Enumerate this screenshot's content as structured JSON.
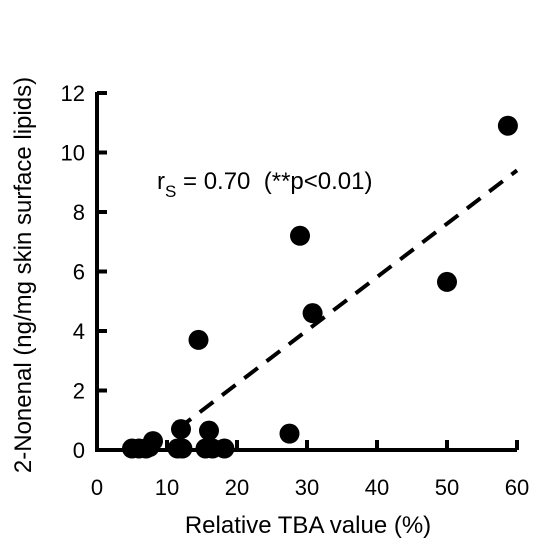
{
  "chart_data": {
    "type": "scatter",
    "title": "",
    "xlabel": "Relative TBA value (%)",
    "ylabel": "2-Nonenal (ng/mg skin surface lipids)",
    "xlim": [
      0,
      60
    ],
    "ylim": [
      0,
      12
    ],
    "xticks": [
      0,
      10,
      20,
      30,
      40,
      50,
      60
    ],
    "yticks": [
      0,
      2,
      4,
      6,
      8,
      10,
      12
    ],
    "grid": false,
    "legend": "none",
    "annotation": {
      "main": "r",
      "subscript": "S",
      "rest": " = 0.70  (**p<0.01)"
    },
    "trendline": {
      "style": "dashed",
      "points": [
        [
          11.5,
          0.7
        ],
        [
          60,
          9.4
        ]
      ]
    },
    "points": [
      {
        "x": 5.0,
        "y": 0.05
      },
      {
        "x": 6.0,
        "y": 0.05
      },
      {
        "x": 7.0,
        "y": 0.05
      },
      {
        "x": 7.5,
        "y": 0.1
      },
      {
        "x": 8.0,
        "y": 0.3
      },
      {
        "x": 11.5,
        "y": 0.05
      },
      {
        "x": 12.0,
        "y": 0.7
      },
      {
        "x": 12.2,
        "y": 0.05
      },
      {
        "x": 14.5,
        "y": 3.7
      },
      {
        "x": 15.5,
        "y": 0.05
      },
      {
        "x": 16.0,
        "y": 0.65
      },
      {
        "x": 16.5,
        "y": 0.05
      },
      {
        "x": 18.2,
        "y": 0.05
      },
      {
        "x": 27.5,
        "y": 0.55
      },
      {
        "x": 29.0,
        "y": 7.2
      },
      {
        "x": 30.8,
        "y": 4.6
      },
      {
        "x": 50.0,
        "y": 5.65
      },
      {
        "x": 58.7,
        "y": 10.9
      }
    ],
    "colors": {
      "marker": "#000000",
      "axis": "#000000",
      "trendline": "#000000"
    }
  }
}
